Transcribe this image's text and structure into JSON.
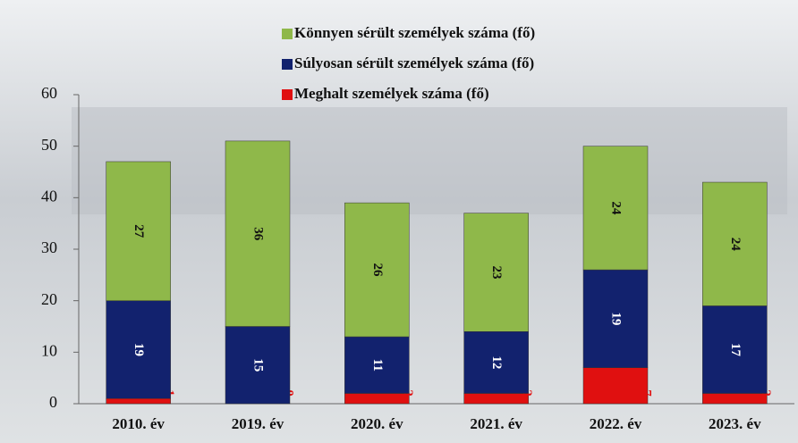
{
  "chart_data": {
    "type": "stacked_bar",
    "categories": [
      "2010. év",
      "2019. év",
      "2020. év",
      "2021. év",
      "2022. év",
      "2023. év"
    ],
    "series": [
      {
        "name": "Meghalt személyek száma (fő)",
        "color": "#e01010",
        "label_color": "#e01010",
        "values": [
          1,
          0,
          2,
          2,
          7,
          2
        ]
      },
      {
        "name": "Súlyosan sérült személyek száma (fő)",
        "color": "#12226e",
        "label_color": "#ffffff",
        "values": [
          19,
          15,
          11,
          12,
          19,
          17
        ]
      },
      {
        "name": "Könnyen sérült személyek száma (fő)",
        "color": "#8fb84a",
        "label_color": "#111111",
        "values": [
          27,
          36,
          26,
          23,
          24,
          24
        ]
      }
    ],
    "ylim": [
      0,
      60
    ],
    "yticks": [
      0,
      10,
      20,
      30,
      40,
      50,
      60
    ]
  }
}
